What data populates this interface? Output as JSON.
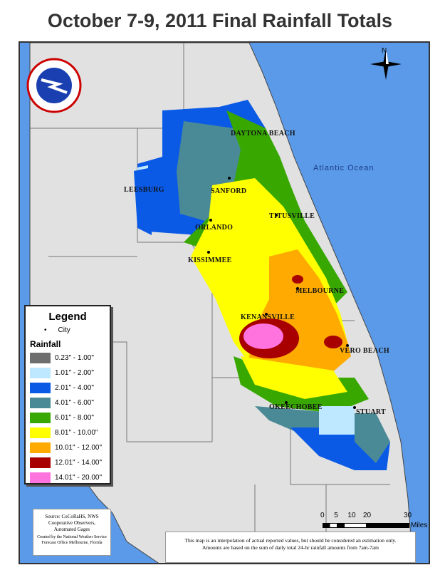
{
  "title": "October 7-9, 2011 Final Rainfall Totals",
  "logo_text": "NATIONAL WEATHER SERVICE",
  "north_label": "N",
  "ocean_label": "Atlantic Ocean",
  "cities": [
    {
      "name": "DAYTONA BEACH"
    },
    {
      "name": "LEESBURG"
    },
    {
      "name": "SANFORD"
    },
    {
      "name": "TITUSVILLE"
    },
    {
      "name": "ORLANDO"
    },
    {
      "name": "KISSIMMEE"
    },
    {
      "name": "MELBOURNE"
    },
    {
      "name": "KENANSVILLE"
    },
    {
      "name": "VERO BEACH"
    },
    {
      "name": "OKEECHOBEE"
    },
    {
      "name": "STUART"
    }
  ],
  "legend": {
    "title": "Legend",
    "city_label": "City",
    "rainfall_label": "Rainfall",
    "classes": [
      {
        "label": "0.23\" - 1.00\"",
        "color": "#6e6e6e"
      },
      {
        "label": "1.01\" - 2.00\"",
        "color": "#bee8ff"
      },
      {
        "label": "2.01\" - 4.00\"",
        "color": "#0a5ae6"
      },
      {
        "label": "4.01\" - 6.00\"",
        "color": "#4a8a96"
      },
      {
        "label": "6.01\" - 8.00\"",
        "color": "#38a800"
      },
      {
        "label": "8.01\" - 10.00\"",
        "color": "#ffff00"
      },
      {
        "label": "10.01\" - 12.00\"",
        "color": "#ffaa00"
      },
      {
        "label": "12.01\" - 14.00\"",
        "color": "#a80000"
      },
      {
        "label": "14.01\" - 20.00\"",
        "color": "#ff73df"
      }
    ]
  },
  "source": {
    "line1": "Source: CoCoRaHS, NWS",
    "line2": "Cooperative Observers,",
    "line3": "Automated Gages",
    "line4": "Created by the National Weather Service",
    "line5": "Forecast Office Melbourne, Florida"
  },
  "disclaimer": {
    "line1": "This map is an interpolation of actual reported values, but should be considered an estimation only.",
    "line2": "Amounts are based on the sum of daily total 24-hr rainfall amounts from 7am-7am"
  },
  "scale": {
    "ticks": [
      "0",
      "5",
      "10",
      "20",
      "30"
    ],
    "unit": "Miles"
  },
  "colors": {
    "ocean": "#5b9ae8",
    "land": "#e1e1e1",
    "border": "#666666"
  }
}
